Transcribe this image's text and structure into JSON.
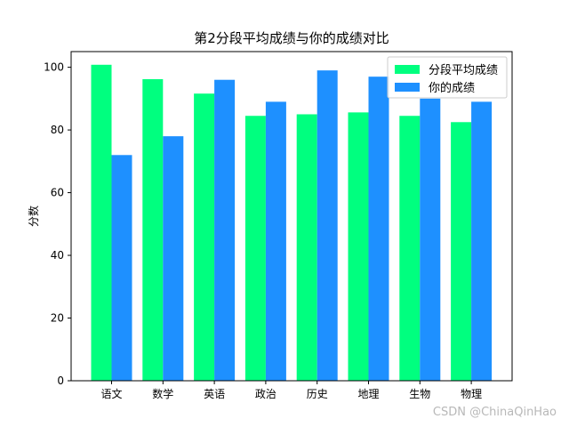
{
  "chart_data": {
    "type": "bar",
    "title": "第2分段平均成绩与你的成绩对比",
    "ylabel": "分数",
    "xlabel": "",
    "ylim": [
      0,
      105
    ],
    "yticks": [
      0,
      20,
      40,
      60,
      80,
      100
    ],
    "categories": [
      "语文",
      "数学",
      "英语",
      "政治",
      "历史",
      "地理",
      "生物",
      "物理"
    ],
    "series": [
      {
        "name": "分段平均成绩",
        "color": "#00ff7f",
        "values": [
          100.8,
          96.2,
          91.6,
          84.5,
          85.0,
          85.6,
          84.5,
          82.5
        ]
      },
      {
        "name": "你的成绩",
        "color": "#1e90ff",
        "values": [
          72,
          78,
          96,
          89,
          99,
          97,
          90,
          89
        ]
      }
    ],
    "grid": false,
    "legend_position": "top-right"
  },
  "watermark": "CSDN @ChinaQinHao"
}
